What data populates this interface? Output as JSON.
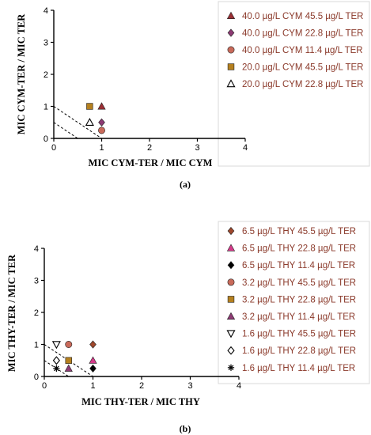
{
  "chart_data": [
    {
      "type": "scatter",
      "title": "",
      "caption": "(a)",
      "xlabel": "MIC CYM-TER / MIC CYM",
      "ylabel": "MIC CYM-TER / MIC TER",
      "xlim": [
        0,
        4
      ],
      "ylim": [
        0,
        4
      ],
      "xticks": [
        "0",
        "1",
        "2",
        "3",
        "4"
      ],
      "yticks": [
        "0",
        "1",
        "2",
        "3",
        "4"
      ],
      "grid": false,
      "legend_position": "right",
      "additivity_lines": [
        {
          "x": [
            0,
            1
          ],
          "y": [
            1,
            0
          ]
        },
        {
          "x": [
            0,
            0.5
          ],
          "y": [
            0.5,
            0
          ]
        }
      ],
      "series": [
        {
          "name": "40.0 µg/L CYM 45.5 µg/L TER",
          "marker": "triangle",
          "color": "#9b2f35",
          "x": [
            1
          ],
          "y": [
            1
          ]
        },
        {
          "name": "40.0 µg/L CYM 22.8 µg/L TER",
          "marker": "diamond",
          "color": "#8e3a74",
          "x": [
            1
          ],
          "y": [
            0.5
          ]
        },
        {
          "name": "40.0 µg/L CYM 11.4 µg/L TER",
          "marker": "circle",
          "color": "#c96a5a",
          "x": [
            1
          ],
          "y": [
            0.25
          ]
        },
        {
          "name": "20.0 µg/L CYM 45.5 µg/L TER",
          "marker": "square",
          "color": "#b5801f",
          "x": [
            0.75
          ],
          "y": [
            1
          ]
        },
        {
          "name": "20.0 µg/L CYM 22.8 µg/L TER",
          "marker": "triangle-open",
          "color": "#000000",
          "x": [
            0.75
          ],
          "y": [
            0.5
          ]
        }
      ]
    },
    {
      "type": "scatter",
      "title": "",
      "caption": "(b)",
      "xlabel": "MIC THY-TER / MIC THY",
      "ylabel": "MIC THY-TER / MIC TER",
      "xlim": [
        0,
        4
      ],
      "ylim": [
        0,
        4
      ],
      "xticks": [
        "0",
        "1",
        "2",
        "3",
        "4"
      ],
      "yticks": [
        "0",
        "1",
        "2",
        "3",
        "4"
      ],
      "grid": false,
      "legend_position": "right",
      "additivity_lines": [
        {
          "x": [
            0,
            1
          ],
          "y": [
            1,
            0
          ]
        },
        {
          "x": [
            0,
            0.5
          ],
          "y": [
            0.5,
            0
          ]
        }
      ],
      "series": [
        {
          "name": "6.5 µg/L THY 45.5 µg/L TER",
          "marker": "diamond",
          "color": "#a0482c",
          "x": [
            1
          ],
          "y": [
            1
          ]
        },
        {
          "name": "6.5 µg/L THY 22.8 µg/L TER",
          "marker": "triangle",
          "color": "#d43a8a",
          "x": [
            1
          ],
          "y": [
            0.5
          ]
        },
        {
          "name": "6.5 µg/L THY 11.4 µg/L TER",
          "marker": "diamond",
          "color": "#000000",
          "x": [
            1
          ],
          "y": [
            0.25
          ]
        },
        {
          "name": "3.2 µg/L THY 45.5 µg/L TER",
          "marker": "circle",
          "color": "#c96a5a",
          "x": [
            0.5
          ],
          "y": [
            1
          ]
        },
        {
          "name": "3.2 µg/L THY 22.8 µg/L TER",
          "marker": "square",
          "color": "#b5801f",
          "x": [
            0.5
          ],
          "y": [
            0.5
          ]
        },
        {
          "name": "3.2 µg/L THY 11.4 µg/L TER",
          "marker": "triangle",
          "color": "#8e3a74",
          "x": [
            0.5
          ],
          "y": [
            0.25
          ]
        },
        {
          "name": "1.6 µg/L THY 45.5 µg/L TER",
          "marker": "triangle-down-open",
          "color": "#000000",
          "x": [
            0.25
          ],
          "y": [
            1
          ]
        },
        {
          "name": "1.6 µg/L THY 22.8 µg/L TER",
          "marker": "diamond-open",
          "color": "#000000",
          "x": [
            0.25
          ],
          "y": [
            0.5
          ]
        },
        {
          "name": "1.6 µg/L THY 11.4 µg/L TER",
          "marker": "asterisk",
          "color": "#000000",
          "x": [
            0.25
          ],
          "y": [
            0.25
          ]
        }
      ]
    }
  ]
}
